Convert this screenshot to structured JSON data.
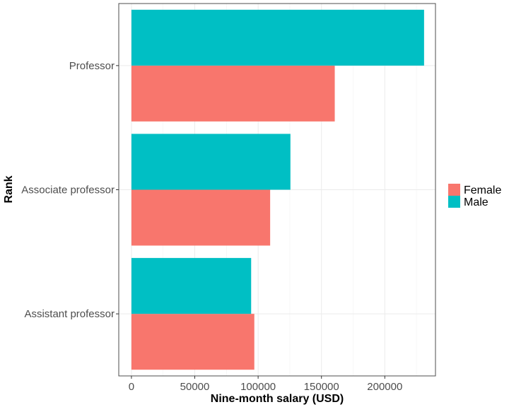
{
  "chart_data": {
    "type": "bar",
    "orientation": "horizontal",
    "categories": [
      "Assistant professor",
      "Associate professor",
      "Professor"
    ],
    "series": [
      {
        "name": "Female",
        "values": [
          97000,
          109500,
          160500
        ]
      },
      {
        "name": "Male",
        "values": [
          94500,
          125500,
          231000
        ]
      }
    ],
    "xlabel": "Nine-month salary (USD)",
    "ylabel": "Rank",
    "xlim": [
      -10000,
      240000
    ],
    "xticks": [
      0,
      50000,
      100000,
      150000,
      200000
    ],
    "xtick_labels": [
      "0",
      "50000",
      "100000",
      "150000",
      "200000"
    ],
    "grid": true,
    "legend_position": "right",
    "colors": {
      "Female": "#F8766D",
      "Male": "#00BFC4"
    }
  }
}
